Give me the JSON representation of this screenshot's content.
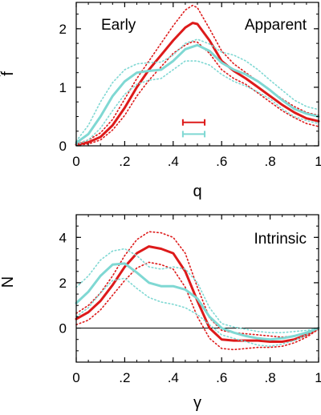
{
  "chart_data": [
    {
      "type": "line",
      "ylabel": "f̂",
      "xlabel": "q",
      "labels": [
        "Early",
        "Apparent"
      ],
      "xlim": [
        0,
        1
      ],
      "ylim": [
        0,
        2.45
      ],
      "xticks": [
        "0",
        ".2",
        ".4",
        ".6",
        ".8",
        "1"
      ],
      "yticks": [
        "0",
        "1",
        "2"
      ],
      "grid": false,
      "series": [
        {
          "role": "red-main",
          "color": "#dd1a1a",
          "style": "solid",
          "x": [
            0,
            0.05,
            0.1,
            0.15,
            0.2,
            0.25,
            0.3,
            0.35,
            0.4,
            0.45,
            0.48,
            0.5,
            0.55,
            0.6,
            0.65,
            0.7,
            0.75,
            0.8,
            0.85,
            0.9,
            0.95,
            1.0
          ],
          "y": [
            0.02,
            0.06,
            0.15,
            0.35,
            0.65,
            1.0,
            1.3,
            1.55,
            1.8,
            2.02,
            2.1,
            2.08,
            1.8,
            1.45,
            1.28,
            1.15,
            1.0,
            0.85,
            0.7,
            0.57,
            0.47,
            0.42
          ]
        },
        {
          "role": "red-upper",
          "color": "#dd1a1a",
          "style": "dotted",
          "x": [
            0,
            0.05,
            0.1,
            0.15,
            0.2,
            0.25,
            0.3,
            0.35,
            0.4,
            0.45,
            0.48,
            0.5,
            0.55,
            0.6,
            0.65,
            0.7,
            0.75,
            0.8,
            0.85,
            0.9,
            0.95,
            1.0
          ],
          "y": [
            0.03,
            0.1,
            0.22,
            0.45,
            0.8,
            1.15,
            1.45,
            1.75,
            2.05,
            2.32,
            2.4,
            2.36,
            2.0,
            1.62,
            1.4,
            1.25,
            1.1,
            0.95,
            0.8,
            0.67,
            0.57,
            0.52
          ]
        },
        {
          "role": "red-lower",
          "color": "#dd1a1a",
          "style": "dotted",
          "x": [
            0,
            0.05,
            0.1,
            0.15,
            0.2,
            0.25,
            0.3,
            0.35,
            0.4,
            0.45,
            0.48,
            0.5,
            0.55,
            0.6,
            0.65,
            0.7,
            0.75,
            0.8,
            0.85,
            0.9,
            0.95,
            1.0
          ],
          "y": [
            0.01,
            0.03,
            0.1,
            0.27,
            0.52,
            0.85,
            1.12,
            1.35,
            1.58,
            1.72,
            1.78,
            1.77,
            1.58,
            1.3,
            1.15,
            1.05,
            0.9,
            0.75,
            0.6,
            0.48,
            0.38,
            0.33
          ]
        },
        {
          "role": "cyan-main",
          "color": "#7fd8d3",
          "style": "solid",
          "x": [
            0,
            0.05,
            0.1,
            0.15,
            0.2,
            0.25,
            0.3,
            0.35,
            0.4,
            0.45,
            0.5,
            0.55,
            0.6,
            0.65,
            0.7,
            0.75,
            0.8,
            0.85,
            0.9,
            0.95,
            1.0
          ],
          "y": [
            0.05,
            0.2,
            0.5,
            0.85,
            1.1,
            1.25,
            1.28,
            1.3,
            1.45,
            1.65,
            1.72,
            1.62,
            1.42,
            1.3,
            1.22,
            1.1,
            0.95,
            0.78,
            0.63,
            0.55,
            0.5
          ]
        },
        {
          "role": "cyan-upper",
          "color": "#7fd8d3",
          "style": "dotted",
          "x": [
            0,
            0.05,
            0.1,
            0.15,
            0.2,
            0.25,
            0.3,
            0.35,
            0.4,
            0.45,
            0.5,
            0.55,
            0.6,
            0.65,
            0.7,
            0.75,
            0.8,
            0.85,
            0.9,
            0.95,
            1.0
          ],
          "y": [
            0.08,
            0.35,
            0.75,
            1.08,
            1.3,
            1.4,
            1.42,
            1.43,
            1.55,
            1.75,
            1.82,
            1.74,
            1.6,
            1.55,
            1.45,
            1.3,
            1.12,
            0.95,
            0.78,
            0.67,
            0.62
          ]
        },
        {
          "role": "cyan-lower",
          "color": "#7fd8d3",
          "style": "dotted",
          "x": [
            0,
            0.05,
            0.1,
            0.15,
            0.2,
            0.25,
            0.3,
            0.35,
            0.4,
            0.45,
            0.5,
            0.55,
            0.6,
            0.65,
            0.7,
            0.75,
            0.8,
            0.85,
            0.9,
            0.95,
            1.0
          ],
          "y": [
            0.02,
            0.1,
            0.3,
            0.6,
            0.88,
            1.05,
            1.12,
            1.15,
            1.3,
            1.45,
            1.45,
            1.38,
            1.22,
            1.1,
            1.02,
            0.92,
            0.8,
            0.63,
            0.5,
            0.43,
            0.38
          ]
        }
      ],
      "error_bars": [
        {
          "color": "#dd1a1a",
          "x_low": 0.44,
          "x_high": 0.53,
          "y": 0.4
        },
        {
          "color": "#7fd8d3",
          "x_low": 0.44,
          "x_high": 0.53,
          "y": 0.2
        }
      ]
    },
    {
      "type": "line",
      "ylabel": "N",
      "xlabel": "γ",
      "labels": [
        "Intrinsic"
      ],
      "xlim": [
        0,
        1
      ],
      "ylim": [
        -1.5,
        5.0
      ],
      "xticks": [
        "0",
        ".2",
        ".4",
        ".6",
        ".8",
        "1"
      ],
      "yticks": [
        "0",
        "2",
        "4"
      ],
      "zero_line": 0,
      "grid": false,
      "series": [
        {
          "role": "red-main",
          "color": "#dd1a1a",
          "style": "solid",
          "x": [
            0,
            0.05,
            0.1,
            0.15,
            0.2,
            0.25,
            0.3,
            0.35,
            0.4,
            0.45,
            0.5,
            0.55,
            0.6,
            0.65,
            0.7,
            0.75,
            0.8,
            0.85,
            0.9,
            0.95,
            1.0
          ],
          "y": [
            0.4,
            0.7,
            1.2,
            1.9,
            2.7,
            3.3,
            3.6,
            3.5,
            3.3,
            2.5,
            1.2,
            0.0,
            -0.5,
            -0.55,
            -0.55,
            -0.55,
            -0.6,
            -0.6,
            -0.5,
            -0.3,
            0.0
          ]
        },
        {
          "role": "red-upper",
          "color": "#dd1a1a",
          "style": "dotted",
          "x": [
            0,
            0.05,
            0.1,
            0.15,
            0.2,
            0.25,
            0.3,
            0.35,
            0.4,
            0.45,
            0.5,
            0.55,
            0.6,
            0.65,
            0.7,
            0.75,
            0.8,
            0.85,
            0.9,
            0.95,
            1.0
          ],
          "y": [
            0.65,
            1.0,
            1.55,
            2.3,
            3.2,
            3.9,
            4.25,
            4.2,
            4.0,
            3.3,
            1.8,
            0.45,
            -0.1,
            -0.2,
            -0.25,
            -0.3,
            -0.35,
            -0.4,
            -0.35,
            -0.2,
            0.0
          ]
        },
        {
          "role": "red-lower",
          "color": "#dd1a1a",
          "style": "dotted",
          "x": [
            0,
            0.05,
            0.1,
            0.15,
            0.2,
            0.25,
            0.3,
            0.35,
            0.4,
            0.45,
            0.5,
            0.55,
            0.6,
            0.65,
            0.7,
            0.75,
            0.8,
            0.85,
            0.9,
            0.95,
            1.0
          ],
          "y": [
            0.15,
            0.35,
            0.8,
            1.45,
            2.1,
            2.65,
            2.9,
            2.8,
            2.6,
            1.8,
            0.5,
            -0.45,
            -0.9,
            -0.95,
            -0.9,
            -0.85,
            -0.85,
            -0.8,
            -0.65,
            -0.4,
            -0.05
          ]
        },
        {
          "role": "cyan-main",
          "color": "#7fd8d3",
          "style": "solid",
          "x": [
            0,
            0.05,
            0.1,
            0.15,
            0.2,
            0.25,
            0.3,
            0.35,
            0.4,
            0.45,
            0.5,
            0.55,
            0.6,
            0.65,
            0.7,
            0.75,
            0.8,
            0.85,
            0.9,
            0.95,
            1.0
          ],
          "y": [
            1.1,
            1.6,
            2.3,
            2.8,
            2.85,
            2.45,
            2.0,
            1.85,
            1.85,
            1.7,
            1.3,
            0.5,
            0.0,
            -0.2,
            -0.35,
            -0.45,
            -0.5,
            -0.45,
            -0.35,
            -0.2,
            0.0
          ]
        },
        {
          "role": "cyan-upper",
          "color": "#7fd8d3",
          "style": "dotted",
          "x": [
            0,
            0.05,
            0.1,
            0.15,
            0.2,
            0.25,
            0.3,
            0.35,
            0.4,
            0.45,
            0.5,
            0.55,
            0.6,
            0.65,
            0.7,
            0.75,
            0.8,
            0.85,
            0.9,
            0.95,
            1.0
          ],
          "y": [
            1.8,
            2.3,
            3.0,
            3.4,
            3.5,
            3.2,
            2.7,
            2.6,
            2.7,
            2.6,
            2.0,
            0.9,
            0.2,
            0.05,
            -0.05,
            -0.15,
            -0.2,
            -0.2,
            -0.15,
            -0.1,
            0.0
          ]
        },
        {
          "role": "cyan-lower",
          "color": "#7fd8d3",
          "style": "dotted",
          "x": [
            0,
            0.05,
            0.1,
            0.15,
            0.2,
            0.25,
            0.3,
            0.35,
            0.4,
            0.45,
            0.5,
            0.55,
            0.6,
            0.65,
            0.7,
            0.75,
            0.8,
            0.85,
            0.9,
            0.95,
            1.0
          ],
          "y": [
            0.5,
            0.9,
            1.55,
            2.1,
            2.2,
            1.75,
            1.35,
            1.15,
            1.05,
            0.9,
            0.6,
            0.15,
            -0.3,
            -0.45,
            -0.6,
            -0.75,
            -0.8,
            -0.7,
            -0.55,
            -0.3,
            0.0
          ]
        }
      ]
    }
  ]
}
